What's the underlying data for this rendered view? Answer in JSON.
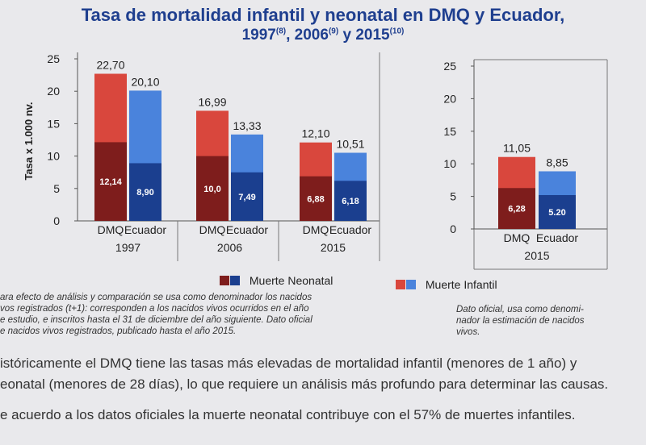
{
  "title_line1": "Tasa de mortalidad infantil y neonatal en DMQ y Ecuador,",
  "title_line2": {
    "y1": "1997",
    "r1": "(8)",
    "y2": "2006",
    "r2": "(9)",
    "y3": "2015",
    "r3": "(10)"
  },
  "legend": {
    "neonatal": "Muerte Neonatal",
    "infantil": "Muerte Infantil"
  },
  "colors": {
    "dmq_infantil": "#d9473d",
    "dmq_neonatal": "#7e1d1c",
    "ecu_infantil": "#4a83dc",
    "ecu_neonatal": "#1b3f8f"
  },
  "note_left": [
    "ara efecto de análisis y comparación se usa como denominador los nacidos",
    "vos registrados (t+1): corresponden a los nacidos vivos ocurridos en el año",
    "e estudio, e inscritos hasta el 31 de diciembre del año siguiente. Dato oficial",
    "e nacidos vivos registrados, publicado hasta el año 2015."
  ],
  "note_right": [
    "Dato oficial, usa como denomi-",
    "nador la estimación de nacidos",
    "vivos."
  ],
  "paragraphs": [
    "istóricamente el DMQ tiene las tasas más elevadas de mortalidad infantil (menores de 1 año) y",
    "eonatal (menores de 28 días), lo que requiere un análisis más profundo para determinar las causas.",
    "e acuerdo a los datos oficiales la muerte neonatal contribuye con el 57% de muertes infantiles."
  ],
  "chart_data": [
    {
      "type": "bar",
      "ylabel": "Tasa x 1.000 nv.",
      "ylim": [
        0,
        25
      ],
      "yticks": [
        "0",
        "5",
        "10",
        "15",
        "20",
        "25"
      ],
      "groups": [
        {
          "year": "1997",
          "bars": [
            {
              "category": "DMQ",
              "infantil": 22.7,
              "infantil_label": "22,70",
              "neonatal": 12.14,
              "neonatal_label": "12,14"
            },
            {
              "category": "Ecuador",
              "infantil": 20.1,
              "infantil_label": "20,10",
              "neonatal": 8.9,
              "neonatal_label": "8,90"
            }
          ]
        },
        {
          "year": "2006",
          "bars": [
            {
              "category": "DMQ",
              "infantil": 16.99,
              "infantil_label": "16,99",
              "neonatal": 10.0,
              "neonatal_label": "10,0"
            },
            {
              "category": "Ecuador",
              "infantil": 13.33,
              "infantil_label": "13,33",
              "neonatal": 7.49,
              "neonatal_label": "7,49"
            }
          ]
        },
        {
          "year": "2015",
          "bars": [
            {
              "category": "DMQ",
              "infantil": 12.1,
              "infantil_label": "12,10",
              "neonatal": 6.88,
              "neonatal_label": "6,88"
            },
            {
              "category": "Ecuador",
              "infantil": 10.51,
              "infantil_label": "10,51",
              "neonatal": 6.18,
              "neonatal_label": "6,18"
            }
          ]
        }
      ]
    },
    {
      "type": "bar",
      "ylim": [
        0,
        25
      ],
      "yticks": [
        "0",
        "5",
        "10",
        "15",
        "20",
        "25"
      ],
      "groups": [
        {
          "year": "2015",
          "bars": [
            {
              "category": "DMQ",
              "infantil": 11.05,
              "infantil_label": "11,05",
              "neonatal": 6.28,
              "neonatal_label": "6,28"
            },
            {
              "category": "Ecuador",
              "infantil": 8.85,
              "infantil_label": "8,85",
              "neonatal": 5.2,
              "neonatal_label": "5.20"
            }
          ]
        }
      ]
    }
  ]
}
